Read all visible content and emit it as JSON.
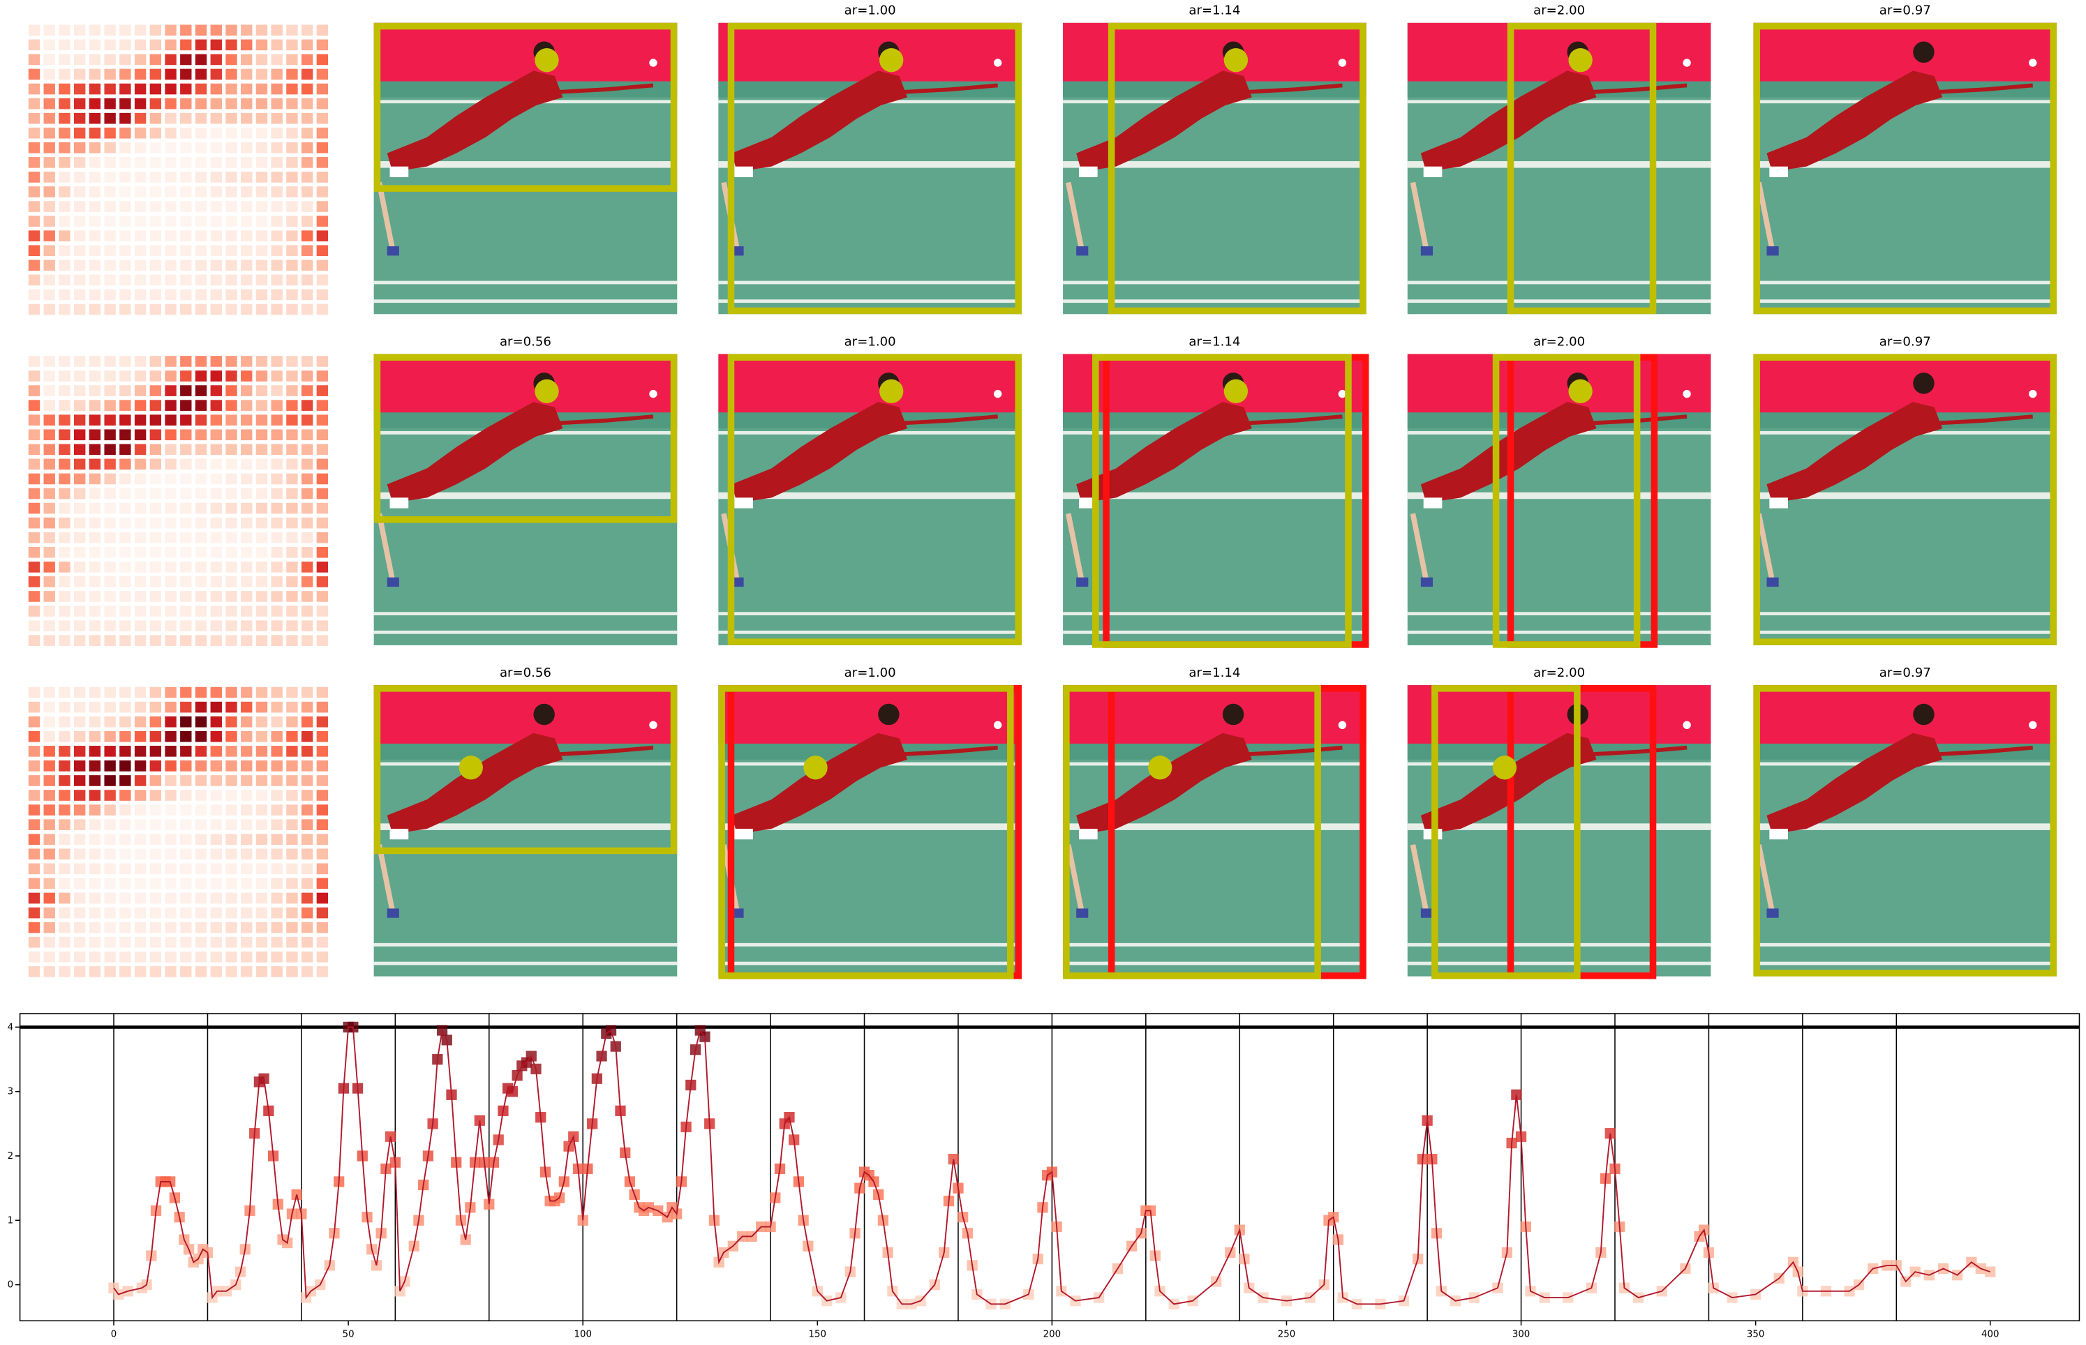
{
  "panels": [
    [
      {},
      {
        "title": "ar=1.00"
      },
      {
        "title": "ar=1.14"
      },
      {
        "title": "ar=2.00"
      },
      {
        "title": "ar=0.97"
      }
    ],
    [
      {
        "title": "ar=0.56"
      },
      {
        "title": "ar=1.00"
      },
      {
        "title": "ar=1.14"
      },
      {
        "title": "ar=2.00"
      },
      {
        "title": "ar=0.97"
      }
    ],
    [
      {
        "title": "ar=0.56"
      },
      {
        "title": "ar=1.00"
      },
      {
        "title": "ar=1.14"
      },
      {
        "title": "ar=2.00"
      },
      {
        "title": "ar=0.97"
      }
    ]
  ],
  "chart_data": {
    "type": "line",
    "x": [
      0,
      1,
      3,
      6,
      7,
      8,
      9,
      10,
      11,
      12,
      13,
      14,
      15,
      16,
      17,
      18,
      19,
      20,
      21,
      22,
      24,
      26,
      27,
      28,
      29,
      30,
      31,
      32,
      33,
      34,
      35,
      36,
      37,
      38,
      39,
      40,
      41,
      42,
      44,
      46,
      47,
      48,
      49,
      50,
      51,
      52,
      53,
      54,
      55,
      56,
      57,
      58,
      59,
      60,
      61,
      62,
      64,
      65,
      66,
      67,
      68,
      69,
      70,
      71,
      72,
      73,
      74,
      75,
      76,
      77,
      78,
      79,
      80,
      81,
      82,
      83,
      84,
      85,
      86,
      87,
      88,
      89,
      90,
      91,
      92,
      93,
      94,
      95,
      96,
      97,
      98,
      99,
      100,
      101,
      102,
      103,
      104,
      105,
      106,
      107,
      108,
      109,
      110,
      111,
      112,
      113,
      114,
      116,
      118,
      119,
      120,
      121,
      122,
      123,
      124,
      125,
      126,
      127,
      128,
      129,
      130,
      132,
      134,
      136,
      138,
      140,
      141,
      142,
      143,
      144,
      145,
      146,
      147,
      148,
      150,
      152,
      155,
      157,
      158,
      159,
      160,
      161,
      162,
      163,
      164,
      165,
      166,
      168,
      170,
      172,
      175,
      177,
      178,
      179,
      180,
      181,
      182,
      183,
      184,
      187,
      190,
      195,
      197,
      198,
      199,
      200,
      201,
      202,
      205,
      210,
      214,
      217,
      219,
      220,
      221,
      222,
      223,
      226,
      230,
      235,
      238,
      240,
      241,
      242,
      245,
      250,
      255,
      258,
      259,
      260,
      261,
      262,
      265,
      270,
      275,
      278,
      279,
      280,
      281,
      282,
      283,
      286,
      290,
      295,
      297,
      298,
      299,
      300,
      301,
      302,
      305,
      310,
      315,
      317,
      318,
      319,
      320,
      321,
      322,
      325,
      330,
      335,
      338,
      339,
      340,
      341,
      345,
      350,
      355,
      358,
      359,
      360,
      365,
      370,
      372,
      375,
      378,
      380,
      382,
      384,
      387,
      390,
      393,
      396,
      398,
      400
    ],
    "series": [
      {
        "color": "#b2182b",
        "values": [
          -0.05,
          -0.15,
          -0.1,
          -0.05,
          0,
          0.45,
          1.15,
          1.6,
          1.6,
          1.6,
          1.35,
          1.05,
          0.7,
          0.55,
          0.35,
          0.4,
          0.55,
          0.5,
          -0.2,
          -0.1,
          -0.1,
          0,
          0.2,
          0.55,
          1.15,
          2.35,
          3.15,
          3.2,
          2.7,
          2,
          1.25,
          0.7,
          0.65,
          1.1,
          1.4,
          1.1,
          -0.2,
          -0.1,
          0,
          0.3,
          0.8,
          1.6,
          3.05,
          4,
          4,
          3.05,
          2,
          1.05,
          0.55,
          0.3,
          0.8,
          1.8,
          2.3,
          1.9,
          -0.1,
          0.05,
          0.6,
          1,
          1.55,
          2,
          2.5,
          3.5,
          3.95,
          3.8,
          2.95,
          1.9,
          1,
          0.7,
          1.2,
          1.9,
          2.55,
          1.9,
          1.25,
          1.9,
          2.25,
          2.7,
          3.05,
          3,
          3.25,
          3.4,
          3.45,
          3.55,
          3.35,
          2.6,
          1.75,
          1.3,
          1.3,
          1.35,
          1.6,
          2.15,
          2.3,
          1.8,
          1,
          1.8,
          2.5,
          3.2,
          3.55,
          3.9,
          3.95,
          3.7,
          2.7,
          2.05,
          1.6,
          1.4,
          1.2,
          1.15,
          1.2,
          1.15,
          1.05,
          1.2,
          1.1,
          1.6,
          2.45,
          3.1,
          3.65,
          3.95,
          3.85,
          2.5,
          1,
          0.35,
          0.5,
          0.6,
          0.75,
          0.75,
          0.9,
          0.9,
          1.35,
          1.8,
          2.5,
          2.6,
          2.25,
          1.6,
          1,
          0.6,
          -0.1,
          -0.25,
          -0.2,
          0.2,
          0.8,
          1.5,
          1.75,
          1.7,
          1.6,
          1.4,
          1,
          0.5,
          -0.1,
          -0.3,
          -0.3,
          -0.25,
          0,
          0.5,
          1.3,
          1.95,
          1.5,
          1.05,
          0.8,
          0.3,
          -0.15,
          -0.3,
          -0.3,
          -0.15,
          0.4,
          1.2,
          1.7,
          1.75,
          0.9,
          -0.1,
          -0.25,
          -0.2,
          0.25,
          0.6,
          0.8,
          1.15,
          1.15,
          0.45,
          -0.1,
          -0.3,
          -0.25,
          0.05,
          0.5,
          0.85,
          0.4,
          -0.05,
          -0.2,
          -0.25,
          -0.2,
          0,
          1,
          1.05,
          0.7,
          -0.2,
          -0.3,
          -0.3,
          -0.25,
          0.4,
          1.95,
          2.55,
          1.95,
          0.8,
          -0.1,
          -0.25,
          -0.2,
          -0.05,
          0.5,
          2.2,
          2.95,
          2.3,
          0.9,
          -0.1,
          -0.2,
          -0.2,
          -0.05,
          0.5,
          1.65,
          2.35,
          1.8,
          0.9,
          -0.05,
          -0.2,
          -0.1,
          0.25,
          0.75,
          0.85,
          0.5,
          -0.05,
          -0.2,
          -0.15,
          0.1,
          0.35,
          0.2,
          -0.1,
          -0.1,
          -0.1,
          0,
          0.25,
          0.3,
          0.3,
          0.05,
          0.2,
          0.15,
          0.25,
          0.15,
          0.35,
          0.25,
          0.2
        ]
      }
    ],
    "marker_colormap": "Reds",
    "xlim": [
      -20,
      419
    ],
    "ylim": [
      -0.56,
      4.21
    ],
    "xticks": [
      0,
      50,
      100,
      150,
      200,
      250,
      300,
      350,
      400
    ],
    "yticks": [
      0,
      1,
      2,
      3,
      4
    ],
    "hline": 4,
    "vlines": [
      0,
      20,
      40,
      60,
      80,
      100,
      120,
      140,
      160,
      180,
      200,
      220,
      240,
      260,
      280,
      300,
      320,
      340,
      360,
      380
    ]
  }
}
